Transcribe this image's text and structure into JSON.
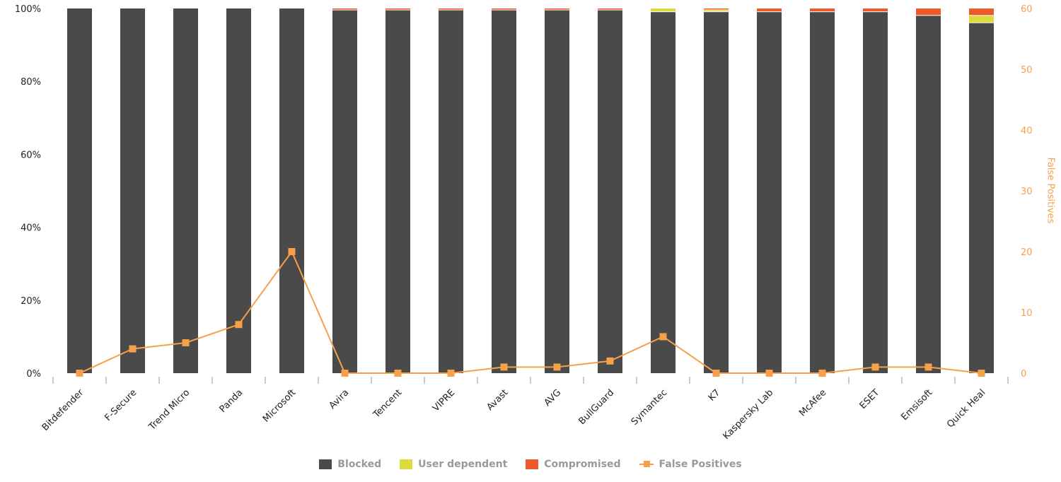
{
  "chart_data": {
    "type": "bar",
    "stacked": true,
    "categories": [
      "Bitdefender",
      "F-Secure",
      "Trend Micro",
      "Panda",
      "Microsoft",
      "Avira",
      "Tencent",
      "VIPRE",
      "Avast",
      "AVG",
      "BullGuard",
      "Symantec",
      "K7",
      "Kaspersky Lab",
      "McAfee",
      "ESET",
      "Emsisoft",
      "Quick Heal"
    ],
    "series": [
      {
        "name": "Blocked",
        "type": "bar",
        "axis": "left",
        "color": "#4a4a4a",
        "values": [
          100,
          100,
          100,
          100,
          100,
          99.5,
          99.5,
          99.5,
          99.5,
          99.5,
          99.5,
          99,
          99,
          99,
          99,
          99,
          98,
          96
        ]
      },
      {
        "name": "User dependent",
        "type": "bar",
        "axis": "left",
        "color": "#d9dc3a",
        "values": [
          0,
          0,
          0,
          0,
          0,
          0,
          0,
          0,
          0,
          0,
          0,
          1,
          0.5,
          0,
          0,
          0,
          0,
          2
        ]
      },
      {
        "name": "Compromised",
        "type": "bar",
        "axis": "left",
        "color": "#ef5a2c",
        "values": [
          0,
          0,
          0,
          0,
          0,
          0.5,
          0.5,
          0.5,
          0.5,
          0.5,
          0.5,
          0,
          0.5,
          1,
          1,
          1,
          2,
          2
        ]
      },
      {
        "name": "False Positives",
        "type": "line",
        "axis": "right",
        "color": "#f7a04b",
        "values": [
          0,
          4,
          5,
          8,
          20,
          0,
          0,
          0,
          1,
          1,
          2,
          6,
          0,
          0,
          0,
          1,
          1,
          0
        ]
      }
    ],
    "y_left": {
      "range": [
        0,
        100
      ],
      "ticks": [
        "0%",
        "20%",
        "40%",
        "60%",
        "80%",
        "100%"
      ]
    },
    "y_right": {
      "label": "False Positives",
      "range": [
        0,
        60
      ],
      "ticks": [
        "0",
        "10",
        "20",
        "30",
        "40",
        "50",
        "60"
      ]
    },
    "legend_position": "bottom",
    "grid": false
  }
}
